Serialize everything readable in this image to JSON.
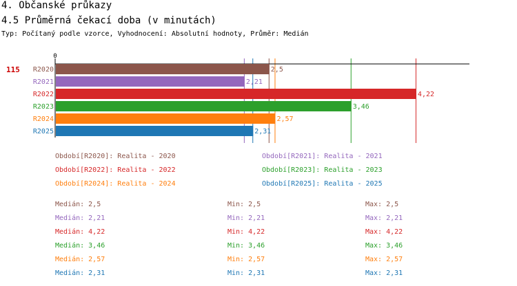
{
  "section_title": "4. Občanské průkazy",
  "chart_title": "4.5 Průměrná čekací doba (v minutách)",
  "subtitle": "Typ: Počítaný podle vzorce, Vyhodnocení: Absolutní hodnoty, Průměr: Medián",
  "row_marker": "115",
  "chart_data": {
    "type": "bar",
    "orientation": "horizontal",
    "categories": [
      "R2020",
      "R2021",
      "R2022",
      "R2023",
      "R2024",
      "R2025"
    ],
    "values": [
      2.5,
      2.21,
      4.22,
      3.46,
      2.57,
      2.31
    ],
    "value_labels": [
      "2,5",
      "2,21",
      "4,22",
      "3,46",
      "2,57",
      "2,31"
    ],
    "colors": [
      "#8c564b",
      "#9467bd",
      "#d62728",
      "#2ca02c",
      "#ff7f0e",
      "#1f77b4"
    ],
    "xlim": [
      0,
      4.85
    ],
    "x_tick_label": "0",
    "reference_lines": [
      {
        "value": 2.5,
        "color": "#8c564b"
      },
      {
        "value": 2.21,
        "color": "#9467bd"
      },
      {
        "value": 4.22,
        "color": "#d62728"
      },
      {
        "value": 3.46,
        "color": "#2ca02c"
      },
      {
        "value": 2.57,
        "color": "#ff7f0e"
      },
      {
        "value": 2.31,
        "color": "#1f77b4"
      }
    ]
  },
  "legend": [
    {
      "text": "Období[R2020]: Realita - 2020",
      "color": "#8c564b"
    },
    {
      "text": "Období[R2021]: Realita - 2021",
      "color": "#9467bd"
    },
    {
      "text": "Období[R2022]: Realita - 2022",
      "color": "#d62728"
    },
    {
      "text": "Období[R2023]: Realita - 2023",
      "color": "#2ca02c"
    },
    {
      "text": "Období[R2024]: Realita - 2024",
      "color": "#ff7f0e"
    },
    {
      "text": "Období[R2025]: Realita - 2025",
      "color": "#1f77b4"
    }
  ],
  "stats": [
    {
      "median": "Medián: 2,5",
      "min": "Min: 2,5",
      "max": "Max: 2,5",
      "color": "#8c564b"
    },
    {
      "median": "Medián: 2,21",
      "min": "Min: 2,21",
      "max": "Max: 2,21",
      "color": "#9467bd"
    },
    {
      "median": "Medián: 4,22",
      "min": "Min: 4,22",
      "max": "Max: 4,22",
      "color": "#d62728"
    },
    {
      "median": "Medián: 3,46",
      "min": "Min: 3,46",
      "max": "Max: 3,46",
      "color": "#2ca02c"
    },
    {
      "median": "Medián: 2,57",
      "min": "Min: 2,57",
      "max": "Max: 2,57",
      "color": "#ff7f0e"
    },
    {
      "median": "Medián: 2,31",
      "min": "Min: 2,31",
      "max": "Max: 2,31",
      "color": "#1f77b4"
    }
  ]
}
